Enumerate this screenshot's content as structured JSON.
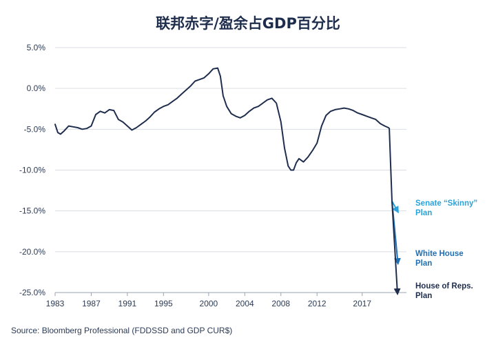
{
  "chart_data": {
    "type": "line",
    "title": "联邦赤字/盈余占GDP百分比",
    "source": "Source: Bloomberg Professional (FDDSSD and GDP CUR$)",
    "xlabel": "",
    "ylabel": "",
    "ylim": [
      -25,
      5
    ],
    "yticks": [
      5,
      0,
      -5,
      -10,
      -15,
      -20,
      -25
    ],
    "ytick_labels": [
      "5.0%",
      "0.0%",
      "-5.0%",
      "-10.0%",
      "-15.0%",
      "-20.0%",
      "-25.0%"
    ],
    "xlim": [
      1983,
      2021.9
    ],
    "xticks": [
      1983,
      1987,
      1991,
      1995,
      2000,
      2004,
      2008,
      2012,
      2017
    ],
    "xtick_labels": [
      "1983",
      "1987",
      "1991",
      "1995",
      "2000",
      "2004",
      "2008",
      "2012",
      "2017"
    ],
    "grid": true,
    "colors": {
      "main": "#1f2d4d",
      "senate": "#29a3dc",
      "whitehouse": "#1f6fb5",
      "house": "#1f2d4d",
      "grid": "#d9dde3",
      "text": "#2b3a55"
    },
    "series": [
      {
        "key": "deficit",
        "x": [
          1983.0,
          1983.3,
          1983.6,
          1984.0,
          1984.5,
          1985.0,
          1985.5,
          1986.0,
          1986.5,
          1987.0,
          1987.5,
          1988.0,
          1988.5,
          1989.0,
          1989.5,
          1990.0,
          1990.5,
          1991.0,
          1991.5,
          1992.0,
          1992.5,
          1993.0,
          1993.5,
          1994.0,
          1994.5,
          1995.0,
          1995.5,
          1996.0,
          1996.5,
          1997.0,
          1997.5,
          1998.0,
          1998.5,
          1999.0,
          1999.5,
          2000.0,
          2000.5,
          2001.0,
          2001.3,
          2001.6,
          2002.0,
          2002.5,
          2003.0,
          2003.5,
          2004.0,
          2004.5,
          2005.0,
          2005.5,
          2006.0,
          2006.5,
          2007.0,
          2007.5,
          2008.0,
          2008.4,
          2008.8,
          2009.1,
          2009.4,
          2009.7,
          2010.0,
          2010.5,
          2011.0,
          2011.5,
          2012.0,
          2012.5,
          2013.0,
          2013.5,
          2014.0,
          2014.5,
          2015.0,
          2015.5,
          2016.0,
          2016.5,
          2017.0,
          2017.5,
          2018.0,
          2018.5,
          2019.0,
          2019.5,
          2019.9,
          2020.0,
          2020.15,
          2020.3
        ],
        "y": [
          -4.4,
          -5.4,
          -5.6,
          -5.2,
          -4.6,
          -4.7,
          -4.8,
          -5.0,
          -4.9,
          -4.6,
          -3.2,
          -2.8,
          -3.0,
          -2.6,
          -2.7,
          -3.8,
          -4.1,
          -4.6,
          -5.1,
          -4.8,
          -4.4,
          -4.0,
          -3.5,
          -2.9,
          -2.5,
          -2.2,
          -2.0,
          -1.6,
          -1.2,
          -0.7,
          -0.2,
          0.3,
          0.9,
          1.1,
          1.3,
          1.8,
          2.4,
          2.5,
          1.5,
          -0.9,
          -2.2,
          -3.1,
          -3.4,
          -3.6,
          -3.3,
          -2.8,
          -2.4,
          -2.2,
          -1.8,
          -1.4,
          -1.2,
          -1.8,
          -4.1,
          -7.3,
          -9.5,
          -10.0,
          -10.0,
          -9.1,
          -8.6,
          -9.0,
          -8.4,
          -7.6,
          -6.7,
          -4.6,
          -3.3,
          -2.8,
          -2.6,
          -2.5,
          -2.4,
          -2.5,
          -2.7,
          -3.0,
          -3.2,
          -3.4,
          -3.6,
          -3.8,
          -4.3,
          -4.6,
          -4.8,
          -4.9,
          -9.5,
          -13.8
        ]
      },
      {
        "key": "senate",
        "x": [
          2020.3,
          2020.9
        ],
        "y": [
          -13.8,
          -15.0
        ]
      },
      {
        "key": "whitehouse",
        "x": [
          2020.3,
          2020.95
        ],
        "y": [
          -13.8,
          -21.3
        ]
      },
      {
        "key": "house",
        "x": [
          2020.3,
          2020.9
        ],
        "y": [
          -13.8,
          -25.0
        ]
      }
    ],
    "annotations": [
      {
        "key": "senate",
        "lines": [
          "Senate “Skinny”",
          "Plan"
        ]
      },
      {
        "key": "whitehouse",
        "lines": [
          "White House",
          "Plan"
        ]
      },
      {
        "key": "house",
        "lines": [
          "House of Reps.",
          "Plan"
        ]
      }
    ]
  }
}
